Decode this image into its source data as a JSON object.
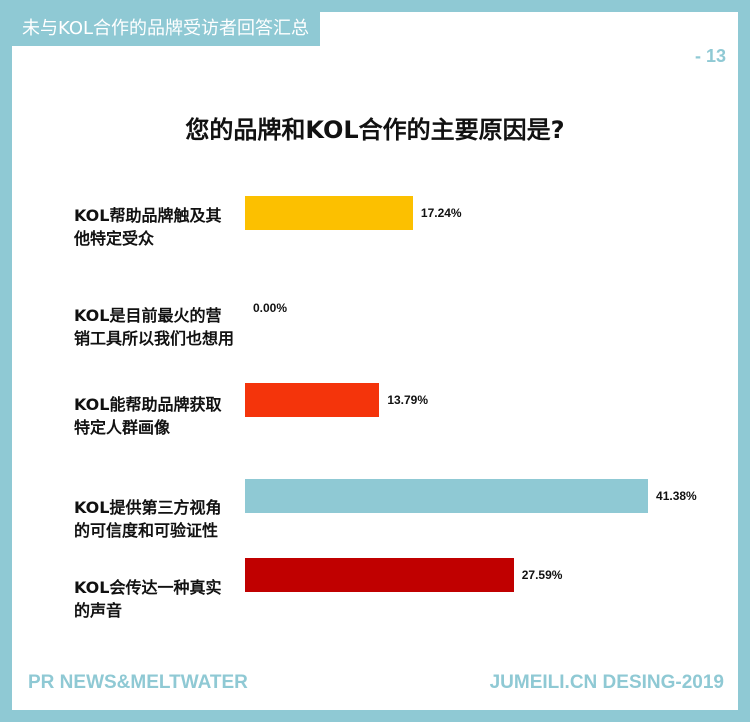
{
  "header": {
    "tag": "未与KOL合作的品牌受访者回答汇总",
    "page_number": "- 13"
  },
  "footer": {
    "left": "PR NEWS&MELTWATER",
    "right": "JUMEILI.CN DESING-2019"
  },
  "chart_data": {
    "type": "bar",
    "orientation": "horizontal",
    "title": "您的品牌和KOL合作的主要原因是?",
    "xlabel": "",
    "ylabel": "",
    "xlim": [
      0,
      50
    ],
    "grid": false,
    "categories": [
      "KOL帮助品牌触及其他特定受众",
      "KOL是目前最火的营销工具所以我们也想用",
      "KOL能帮助品牌获取特定人群画像",
      "KOL提供第三方视角的可信度和可验证性",
      "KOL会传达一种真实的声音"
    ],
    "values": [
      17.24,
      0.0,
      13.79,
      41.38,
      27.59
    ],
    "value_labels": [
      "17.24%",
      "0.00%",
      "13.79%",
      "41.38%",
      "27.59%"
    ],
    "colors": [
      "#fcc000",
      "#fcc000",
      "#f4340b",
      "#8fc9d4",
      "#c00000"
    ]
  }
}
